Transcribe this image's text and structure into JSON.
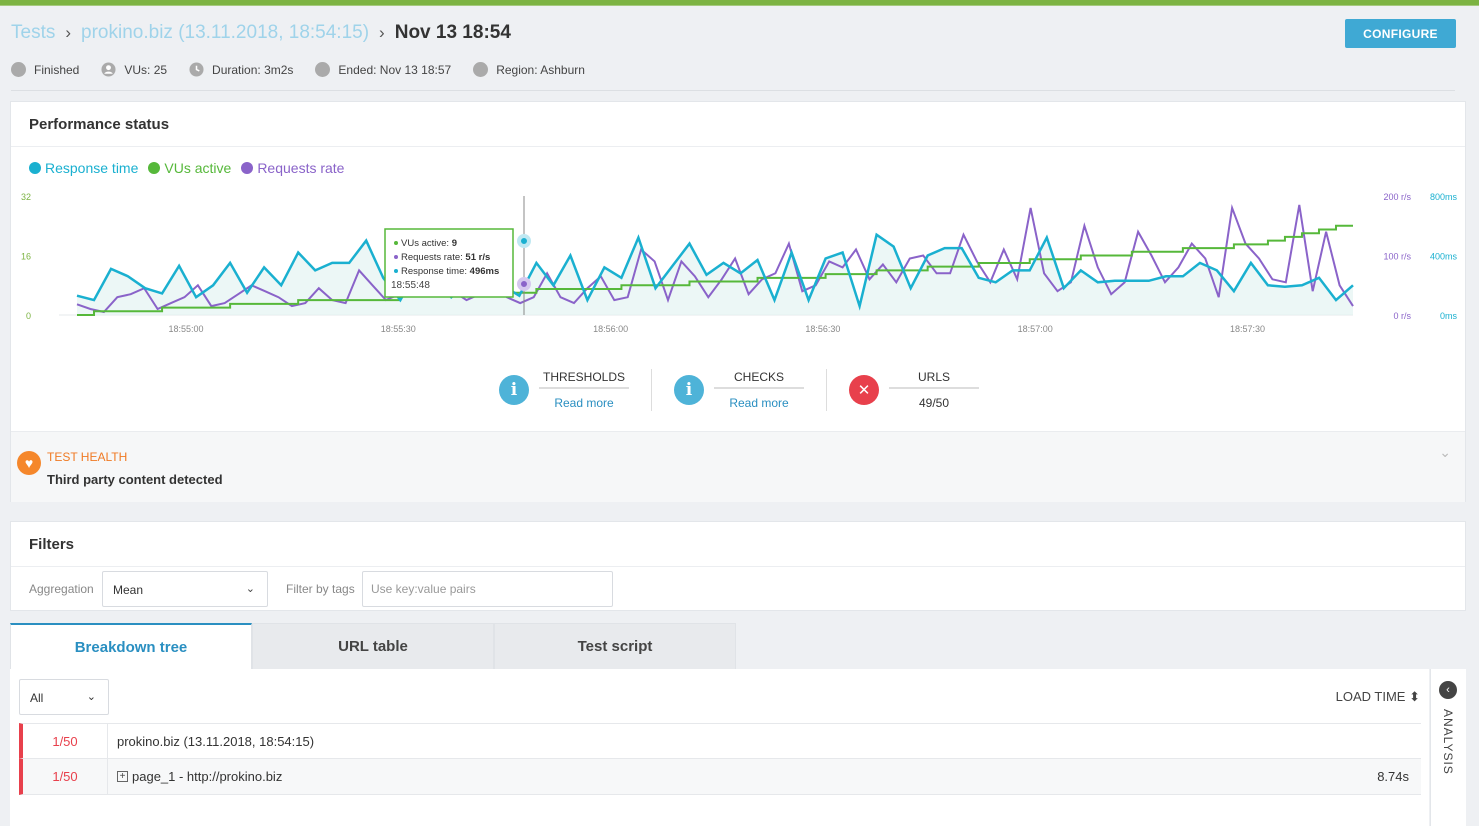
{
  "breadcrumb": {
    "root": "Tests",
    "parent": "prokino.biz (13.11.2018, 18:54:15)",
    "current": "Nov 13 18:54"
  },
  "configure_label": "CONFIGURE",
  "meta": {
    "status": "Finished",
    "vus": "VUs: 25",
    "duration": "Duration: 3m2s",
    "ended": "Ended: Nov 13 18:57",
    "region": "Region: Ashburn"
  },
  "performance": {
    "title": "Performance status",
    "legend": [
      {
        "label": "Response time",
        "color": "#1ab0d0"
      },
      {
        "label": "VUs active",
        "color": "#56b83a"
      },
      {
        "label": "Requests rate",
        "color": "#8a63c9"
      }
    ]
  },
  "chart_data": {
    "type": "line",
    "x_ticks": [
      "18:55:00",
      "18:55:30",
      "18:56:00",
      "18:56:30",
      "18:57:00",
      "18:57:30"
    ],
    "y_left_ticks": [
      "32",
      "16",
      "0"
    ],
    "y_right_rate_ticks": [
      "200 r/s",
      "100 r/s",
      "0 r/s"
    ],
    "y_right_time_ticks": [
      "800ms",
      "400ms",
      "0ms"
    ],
    "series": [
      {
        "name": "Response time",
        "color": "#1ab0d0",
        "unit": "ms",
        "values": [
          130,
          100,
          310,
          260,
          180,
          145,
          330,
          120,
          200,
          350,
          150,
          320,
          200,
          420,
          300,
          350,
          350,
          500,
          250,
          100,
          300,
          250,
          120,
          220,
          350,
          200,
          130,
          350,
          200,
          400,
          100,
          320,
          250,
          520,
          180,
          330,
          480,
          270,
          350,
          280,
          370,
          100,
          420,
          100,
          380,
          420,
          60,
          540,
          460,
          180,
          400,
          450,
          450,
          250,
          220,
          300,
          300,
          520,
          180,
          300,
          220,
          230,
          230,
          230,
          260,
          260,
          350,
          300,
          160,
          350,
          200,
          190,
          200,
          250,
          100,
          200
        ],
        "smooth_index": 0
      },
      {
        "name": "VUs active",
        "color": "#56b83a",
        "unit": "VUs",
        "values": [
          0,
          1,
          1,
          1,
          1,
          2,
          2,
          2,
          2,
          3,
          3,
          3,
          3,
          4,
          4,
          4,
          4,
          4,
          4,
          5,
          5,
          5,
          5,
          6,
          6,
          6,
          6,
          7,
          7,
          7,
          7,
          7,
          8,
          8,
          8,
          8,
          9,
          9,
          9,
          9,
          10,
          10,
          10,
          10,
          11,
          11,
          11,
          12,
          12,
          12,
          13,
          13,
          13,
          14,
          14,
          14,
          15,
          15,
          15,
          16,
          16,
          16,
          17,
          17,
          17,
          18,
          18,
          18,
          19,
          19,
          20,
          21,
          22,
          23,
          24,
          24
        ]
      },
      {
        "name": "Requests rate",
        "color": "#8a63c9",
        "unit": "r/s",
        "values": [
          18,
          10,
          5,
          30,
          35,
          45,
          10,
          20,
          30,
          50,
          15,
          20,
          35,
          50,
          40,
          30,
          15,
          20,
          45,
          25,
          20,
          75,
          50,
          25,
          35,
          75,
          35,
          60,
          40,
          25,
          35,
          55,
          30,
          20,
          30,
          70,
          30,
          20,
          45,
          65,
          25,
          30,
          110,
          90,
          25,
          90,
          65,
          30,
          60,
          95,
          35,
          60,
          70,
          120,
          40,
          50,
          90,
          80,
          110,
          60,
          85,
          55,
          95,
          100,
          70,
          70,
          135,
          90,
          55,
          110,
          60,
          180,
          70,
          40,
          55,
          150,
          80,
          35,
          55,
          140,
          100,
          55,
          80,
          120,
          95,
          30,
          180,
          120,
          95,
          60,
          55,
          185,
          40,
          140,
          50,
          15
        ]
      }
    ],
    "tooltip": {
      "vus_active_label": "VUs active: ",
      "vus_active_value": "9",
      "requests_rate_label": "Requests rate: ",
      "requests_rate_value": "51 r/s",
      "response_time_label": "Response time: ",
      "response_time_value": "496ms",
      "time": "18:55:48"
    }
  },
  "status": {
    "thresholds": {
      "label": "THRESHOLDS",
      "sub": "Read more",
      "icon": "info-icon"
    },
    "checks": {
      "label": "CHECKS",
      "sub": "Read more",
      "icon": "info-icon"
    },
    "urls": {
      "label": "URLS",
      "sub": "49/50",
      "icon": "fail-x-icon"
    }
  },
  "health": {
    "label": "TEST HEALTH",
    "text": "Third party content detected"
  },
  "filters": {
    "title": "Filters",
    "aggregation_label": "Aggregation",
    "aggregation_value": "Mean",
    "tags_label": "Filter by tags",
    "tags_placeholder": "Use key:value pairs"
  },
  "tabs": [
    {
      "label": "Breakdown tree"
    },
    {
      "label": "URL table"
    },
    {
      "label": "Test script"
    }
  ],
  "tree": {
    "filter_value": "All",
    "load_time_label": "LOAD TIME",
    "rows": [
      {
        "ratio": "1/50",
        "name": "prokino.biz (13.11.2018, 18:54:15)",
        "time": ""
      },
      {
        "ratio": "1/50",
        "name": "page_1 - http://prokino.biz",
        "time": "8.74s"
      }
    ]
  },
  "analysis_label": "ANALYSIS"
}
